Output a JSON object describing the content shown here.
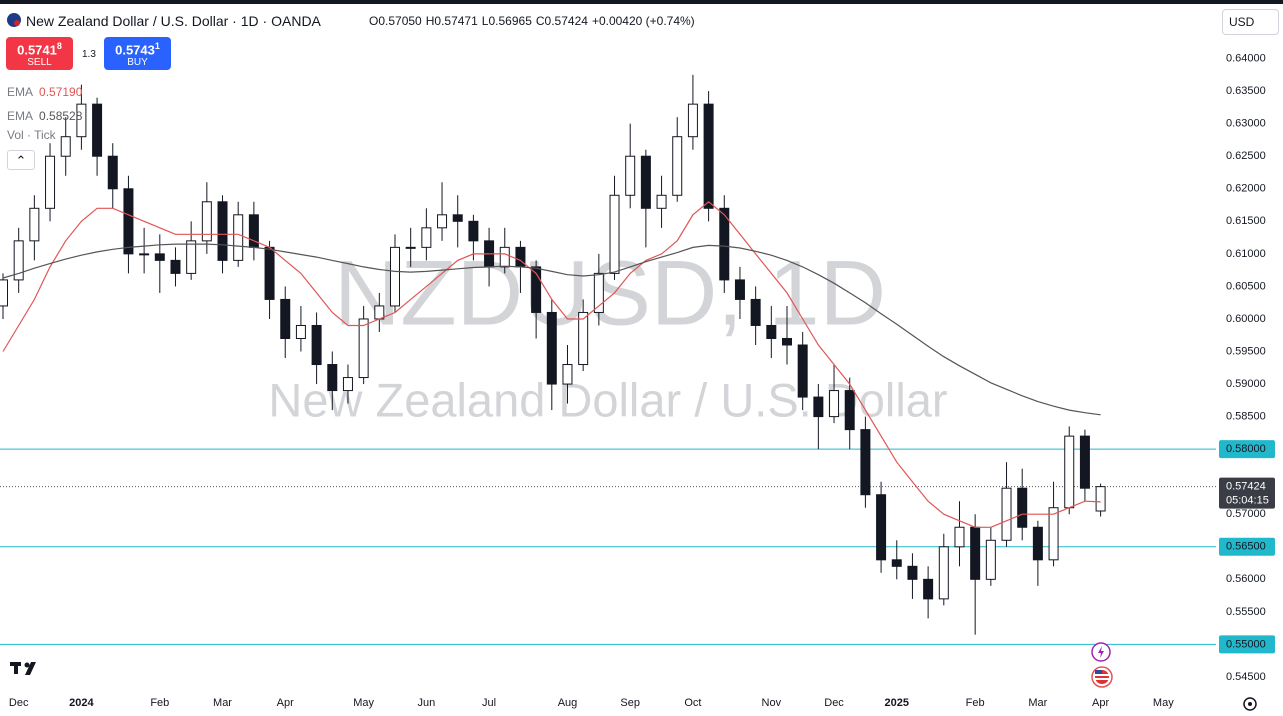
{
  "ui": {
    "symbol": "New Zealand Dollar / U.S. Dollar",
    "interval": "1D",
    "exchange": "OANDA",
    "ohlc": [
      {
        "key": "O",
        "label": "0.57050"
      },
      {
        "key": "H",
        "label": "0.57471"
      },
      {
        "key": "L",
        "label": "0.56965"
      },
      {
        "key": "C",
        "label": "0.57424"
      }
    ],
    "change": "+0.00420 (+0.74%)",
    "sell": {
      "price": "0.5741",
      "pip": "8",
      "label": "SELL"
    },
    "spread": "1.3",
    "buy": {
      "price": "0.5743",
      "pip": "1",
      "label": "BUY"
    },
    "volume": "Vol · Tick",
    "currency": "USD",
    "watermark": "NZDUSD, 1D"
  },
  "chart_data": {
    "type": "candlestick",
    "categories": [
      null,
      "Dec",
      null,
      null,
      null,
      "2024",
      null,
      null,
      null,
      null,
      "Feb",
      null,
      null,
      null,
      "Mar",
      null,
      null,
      null,
      "Apr",
      null,
      null,
      null,
      null,
      "May",
      null,
      null,
      null,
      "Jun",
      null,
      null,
      null,
      "Jul",
      null,
      null,
      null,
      null,
      "Aug",
      null,
      null,
      null,
      "Sep",
      null,
      null,
      null,
      "Oct",
      null,
      null,
      null,
      null,
      "Nov",
      null,
      null,
      null,
      "Dec",
      null,
      null,
      null,
      "2025",
      null,
      null,
      null,
      null,
      "Feb",
      null,
      null,
      null,
      "Mar",
      null,
      null,
      null,
      "Apr",
      null,
      null,
      null,
      "May"
    ],
    "open": [
      0.602,
      0.606,
      0.612,
      0.617,
      0.625,
      0.628,
      0.633,
      0.625,
      0.62,
      0.61,
      0.61,
      0.609,
      0.607,
      0.612,
      0.618,
      0.609,
      0.616,
      0.611,
      0.603,
      0.597,
      0.599,
      0.593,
      0.589,
      0.591,
      0.6,
      0.602,
      0.611,
      0.611,
      0.614,
      0.616,
      0.615,
      0.612,
      0.608,
      0.611,
      0.608,
      0.601,
      0.59,
      0.593,
      0.601,
      0.607,
      0.619,
      0.625,
      0.617,
      0.619,
      0.628,
      0.633,
      0.617,
      0.606,
      0.603,
      0.599,
      0.597,
      0.596,
      0.588,
      0.585,
      0.589,
      0.583,
      0.573,
      0.563,
      0.562,
      0.56,
      0.557,
      0.565,
      0.568,
      0.56,
      0.566,
      0.574,
      0.568,
      0.563,
      0.571,
      0.582,
      0.5705,
      null,
      null,
      null,
      null
    ],
    "high": [
      0.607,
      0.614,
      0.619,
      0.627,
      0.631,
      0.636,
      0.634,
      0.627,
      0.622,
      0.614,
      0.613,
      0.611,
      0.615,
      0.621,
      0.619,
      0.618,
      0.618,
      0.612,
      0.605,
      0.602,
      0.601,
      0.595,
      0.593,
      0.602,
      0.604,
      0.613,
      0.614,
      0.617,
      0.621,
      0.619,
      0.616,
      0.614,
      0.614,
      0.612,
      0.609,
      0.603,
      0.596,
      0.603,
      0.61,
      0.622,
      0.63,
      0.626,
      0.622,
      0.631,
      0.6375,
      0.635,
      0.619,
      0.608,
      0.605,
      0.602,
      0.602,
      0.598,
      0.59,
      0.593,
      0.591,
      0.585,
      0.575,
      0.566,
      0.564,
      0.562,
      0.567,
      0.572,
      0.57,
      0.568,
      0.578,
      0.577,
      0.569,
      0.575,
      0.5835,
      0.583,
      0.57471,
      null,
      null,
      null,
      null
    ],
    "low": [
      0.6,
      0.604,
      0.609,
      0.615,
      0.622,
      0.626,
      0.622,
      0.617,
      0.607,
      0.607,
      0.604,
      0.605,
      0.606,
      0.61,
      0.607,
      0.608,
      0.609,
      0.6,
      0.594,
      0.595,
      0.59,
      0.586,
      0.587,
      0.59,
      0.598,
      0.601,
      0.608,
      0.609,
      0.612,
      0.611,
      0.609,
      0.605,
      0.607,
      0.604,
      0.597,
      0.586,
      0.587,
      0.592,
      0.599,
      0.606,
      0.617,
      0.611,
      0.614,
      0.618,
      0.626,
      0.615,
      0.604,
      0.6,
      0.596,
      0.594,
      0.593,
      0.586,
      0.58,
      0.584,
      0.58,
      0.571,
      0.561,
      0.56,
      0.557,
      0.554,
      0.556,
      0.562,
      0.5515,
      0.559,
      0.565,
      0.566,
      0.559,
      0.562,
      0.57,
      0.572,
      0.56965,
      null,
      null,
      null,
      null
    ],
    "close": [
      0.606,
      0.612,
      0.617,
      0.625,
      0.628,
      0.633,
      0.625,
      0.62,
      0.61,
      0.61,
      0.609,
      0.607,
      0.612,
      0.618,
      0.609,
      0.616,
      0.611,
      0.603,
      0.597,
      0.599,
      0.593,
      0.589,
      0.591,
      0.6,
      0.602,
      0.611,
      0.611,
      0.614,
      0.616,
      0.615,
      0.612,
      0.608,
      0.611,
      0.608,
      0.601,
      0.59,
      0.593,
      0.601,
      0.607,
      0.619,
      0.625,
      0.617,
      0.619,
      0.628,
      0.633,
      0.617,
      0.606,
      0.603,
      0.599,
      0.597,
      0.596,
      0.588,
      0.585,
      0.589,
      0.583,
      0.573,
      0.563,
      0.562,
      0.56,
      0.557,
      0.565,
      0.568,
      0.56,
      0.566,
      0.574,
      0.568,
      0.563,
      0.571,
      0.582,
      0.574,
      0.57424,
      null,
      null,
      null,
      null
    ],
    "up_color": "#ffffff",
    "down_color": "#131722",
    "series": [
      {
        "name": "EMA",
        "label": "0.57190",
        "color": "#e05555",
        "values": [
          0.595,
          0.599,
          0.603,
          0.608,
          0.612,
          0.615,
          0.617,
          0.617,
          0.616,
          0.615,
          0.614,
          0.613,
          0.613,
          0.613,
          0.613,
          0.613,
          0.612,
          0.611,
          0.609,
          0.607,
          0.604,
          0.601,
          0.599,
          0.599,
          0.6,
          0.601,
          0.603,
          0.605,
          0.607,
          0.609,
          0.61,
          0.61,
          0.61,
          0.609,
          0.607,
          0.603,
          0.6,
          0.6,
          0.602,
          0.604,
          0.607,
          0.609,
          0.61,
          0.612,
          0.616,
          0.618,
          0.616,
          0.613,
          0.61,
          0.607,
          0.604,
          0.6,
          0.596,
          0.593,
          0.59,
          0.586,
          0.582,
          0.578,
          0.575,
          0.572,
          0.57,
          0.569,
          0.568,
          0.568,
          0.569,
          0.57,
          0.57,
          0.57,
          0.571,
          0.572,
          0.5719,
          null,
          null,
          null,
          null
        ]
      },
      {
        "name": "EMA",
        "label": "0.58528",
        "color": "#555555",
        "values": [
          0.6063,
          0.607,
          0.6078,
          0.6085,
          0.6092,
          0.6098,
          0.6103,
          0.6107,
          0.611,
          0.6112,
          0.6114,
          0.6115,
          0.6115,
          0.6115,
          0.6114,
          0.6112,
          0.611,
          0.6107,
          0.6103,
          0.6099,
          0.6095,
          0.609,
          0.6085,
          0.608,
          0.6076,
          0.6073,
          0.6072,
          0.6073,
          0.6075,
          0.6077,
          0.6079,
          0.608,
          0.6081,
          0.608,
          0.6078,
          0.6073,
          0.6068,
          0.6066,
          0.6068,
          0.6072,
          0.608,
          0.6088,
          0.6095,
          0.6102,
          0.611,
          0.6113,
          0.6112,
          0.6109,
          0.6104,
          0.6098,
          0.609,
          0.608,
          0.6068,
          0.6055,
          0.604,
          0.6025,
          0.6008,
          0.5992,
          0.5975,
          0.5958,
          0.5942,
          0.5928,
          0.5915,
          0.5902,
          0.5892,
          0.5882,
          0.5873,
          0.5866,
          0.586,
          0.5856,
          0.58528,
          null,
          null,
          null,
          null
        ]
      }
    ],
    "levels": [
      {
        "value": 0.58,
        "label": "0.58000"
      },
      {
        "value": 0.565,
        "label": "0.56500"
      },
      {
        "value": 0.55,
        "label": "0.55000"
      }
    ],
    "level_color": "#22b8cc",
    "last": {
      "value": 0.57424,
      "label": "0.57424",
      "timer": "05:04:15"
    },
    "ylim": [
      0.543,
      0.649
    ],
    "yticks": [
      {
        "value": 0.64,
        "label": "0.64000"
      },
      {
        "value": 0.635,
        "label": "0.63500"
      },
      {
        "value": 0.63,
        "label": "0.63000"
      },
      {
        "value": 0.625,
        "label": "0.62500"
      },
      {
        "value": 0.62,
        "label": "0.62000"
      },
      {
        "value": 0.615,
        "label": "0.61500"
      },
      {
        "value": 0.61,
        "label": "0.61000"
      },
      {
        "value": 0.605,
        "label": "0.60500"
      },
      {
        "value": 0.6,
        "label": "0.60000"
      },
      {
        "value": 0.595,
        "label": "0.59500"
      },
      {
        "value": 0.59,
        "label": "0.59000"
      },
      {
        "value": 0.585,
        "label": "0.58500"
      },
      {
        "value": 0.57,
        "label": "0.57000"
      },
      {
        "value": 0.56,
        "label": "0.56000"
      },
      {
        "value": 0.555,
        "label": "0.55500"
      },
      {
        "value": 0.545,
        "label": "0.54500"
      }
    ],
    "grid": false
  }
}
